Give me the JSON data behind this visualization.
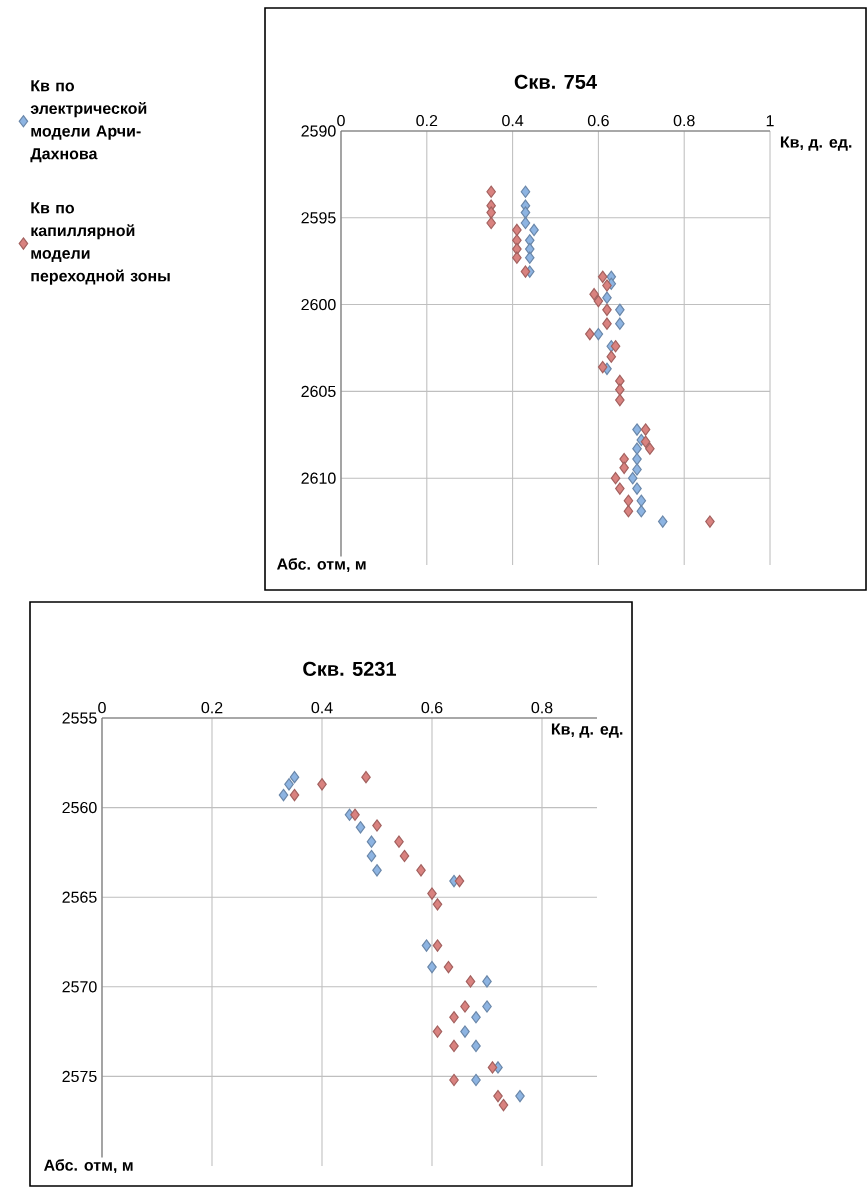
{
  "chart_data": [
    {
      "type": "scatter",
      "title": "Скв. 754",
      "xlabel": "Кв, д. ед.",
      "ylabel": "Абс. отм, м",
      "xlim": [
        0,
        1
      ],
      "ylim": [
        2615,
        2590
      ],
      "xticks": [
        0,
        0.2,
        0.4,
        0.6,
        0.8,
        1
      ],
      "yticks": [
        2590,
        2595,
        2600,
        2605,
        2610
      ],
      "grid": true,
      "marker": "diamond",
      "legend": "left",
      "series": [
        {
          "name": "Кв по электрической модели Арчи-Дахнова",
          "color": "#8db4e2",
          "x": [
            0.43,
            0.43,
            0.43,
            0.43,
            0.45,
            0.44,
            0.44,
            0.44,
            0.44,
            0.63,
            0.63,
            0.62,
            0.65,
            0.65,
            0.6,
            0.63,
            0.62,
            0.69,
            0.7,
            0.69,
            0.69,
            0.69,
            0.68,
            0.69,
            0.7,
            0.7,
            0.75
          ],
          "values": [
            2593.5,
            2594.3,
            2594.7,
            2595.3,
            2595.7,
            2596.3,
            2596.8,
            2597.3,
            2598.1,
            2598.4,
            2598.8,
            2599.6,
            2600.3,
            2601.1,
            2601.7,
            2602.4,
            2603.7,
            2607.2,
            2607.8,
            2608.3,
            2608.9,
            2609.5,
            2610.0,
            2610.6,
            2611.3,
            2611.9,
            2612.5
          ]
        },
        {
          "name": "Кв по капиллярной модели переходной зоны",
          "color": "#d9827f",
          "x": [
            0.35,
            0.35,
            0.35,
            0.35,
            0.41,
            0.41,
            0.41,
            0.41,
            0.43,
            0.61,
            0.62,
            0.59,
            0.6,
            0.62,
            0.62,
            0.58,
            0.64,
            0.63,
            0.61,
            0.65,
            0.65,
            0.65,
            0.71,
            0.71,
            0.72,
            0.66,
            0.66,
            0.64,
            0.65,
            0.67,
            0.67,
            0.86
          ],
          "values": [
            2593.5,
            2594.3,
            2594.7,
            2595.3,
            2595.7,
            2596.3,
            2596.8,
            2597.3,
            2598.1,
            2598.4,
            2598.9,
            2599.4,
            2599.8,
            2600.3,
            2601.1,
            2601.7,
            2602.4,
            2603.0,
            2603.6,
            2604.4,
            2604.9,
            2605.5,
            2607.2,
            2607.9,
            2608.3,
            2608.9,
            2609.4,
            2610.0,
            2610.6,
            2611.3,
            2611.9,
            2612.5
          ]
        }
      ]
    },
    {
      "type": "scatter",
      "title": "Скв. 5231",
      "xlabel": "Кв, д. ед.",
      "ylabel": "Абс. отм, м",
      "xlim": [
        0,
        0.9
      ],
      "ylim": [
        2580,
        2555
      ],
      "xticks": [
        0,
        0.2,
        0.4,
        0.6,
        0.8
      ],
      "yticks": [
        2555,
        2560,
        2565,
        2570,
        2575
      ],
      "grid": true,
      "marker": "diamond",
      "series": [
        {
          "color": "#8db4e2",
          "x": [
            0.35,
            0.34,
            0.33,
            0.45,
            0.47,
            0.49,
            0.49,
            0.5,
            0.64,
            0.59,
            0.6,
            0.7,
            0.7,
            0.68,
            0.66,
            0.68,
            0.72,
            0.68,
            0.76
          ],
          "values": [
            2558.3,
            2558.7,
            2559.3,
            2560.4,
            2561.1,
            2561.9,
            2562.7,
            2563.5,
            2564.1,
            2567.7,
            2568.9,
            2569.7,
            2571.1,
            2571.7,
            2572.5,
            2573.3,
            2574.5,
            2575.2,
            2576.1
          ]
        },
        {
          "color": "#d9827f",
          "x": [
            0.35,
            0.4,
            0.48,
            0.46,
            0.5,
            0.54,
            0.55,
            0.58,
            0.65,
            0.6,
            0.61,
            0.61,
            0.63,
            0.67,
            0.66,
            0.64,
            0.61,
            0.64,
            0.71,
            0.64,
            0.72,
            0.73
          ],
          "values": [
            2559.3,
            2558.7,
            2558.3,
            2560.4,
            2561.0,
            2561.9,
            2562.7,
            2563.5,
            2564.1,
            2564.8,
            2565.4,
            2567.7,
            2568.9,
            2569.7,
            2571.1,
            2571.7,
            2572.5,
            2573.3,
            2574.5,
            2575.2,
            2576.1,
            2576.6
          ]
        }
      ]
    }
  ]
}
